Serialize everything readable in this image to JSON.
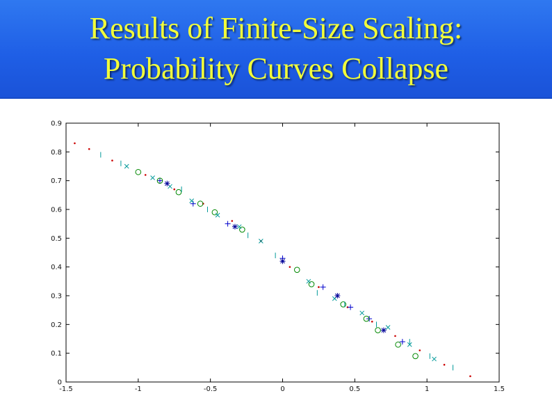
{
  "slide": {
    "title_line1": "Results of Finite-Size Scaling:",
    "title_line2": "Probability Curves Collapse"
  },
  "colors": {
    "title_bg": "#2a6ff0",
    "title_text": "#f2ff3a",
    "series_red": "#cc0000",
    "series_blue": "#0000cc",
    "series_green": "#008800",
    "series_cyan": "#009999",
    "series_magenta": "#bb00bb"
  },
  "chart_data": {
    "type": "scatter",
    "title": "",
    "xlabel": "",
    "ylabel": "",
    "xlim": [
      -1.5,
      1.5
    ],
    "ylim": [
      0,
      0.9
    ],
    "xticks": [
      -1.5,
      -1,
      -0.5,
      0,
      0.5,
      1,
      1.5
    ],
    "xtick_labels": [
      "-1.5",
      "-1",
      "-0.5",
      "0",
      "0.5",
      "1",
      "1.5"
    ],
    "yticks": [
      0,
      0.1,
      0.2,
      0.3,
      0.4,
      0.5,
      0.6,
      0.7,
      0.8,
      0.9
    ],
    "ytick_labels": [
      "0",
      "0.1",
      "0.2",
      "0.3",
      "0.4",
      "0.5",
      "0.6",
      "0.7",
      "0.8",
      "0.9"
    ],
    "grid": false,
    "legend": "none",
    "series": [
      {
        "marker": "dot",
        "color": "#cc0000",
        "x": [
          -1.44,
          -1.34,
          -1.18,
          -0.95,
          -0.75,
          -0.55,
          -0.35,
          -0.15,
          0.05,
          0.25,
          0.45,
          0.62,
          0.78,
          0.95,
          1.12,
          1.3
        ],
        "y": [
          0.83,
          0.81,
          0.77,
          0.72,
          0.67,
          0.62,
          0.56,
          0.49,
          0.4,
          0.33,
          0.26,
          0.21,
          0.16,
          0.11,
          0.06,
          0.02
        ]
      },
      {
        "marker": "plus",
        "color": "#0000cc",
        "x": [
          -0.85,
          -0.62,
          -0.38,
          -0.0,
          0.28,
          0.47,
          0.6,
          0.83
        ],
        "y": [
          0.7,
          0.62,
          0.55,
          0.43,
          0.33,
          0.26,
          0.22,
          0.14
        ]
      },
      {
        "marker": "circle",
        "color": "#008800",
        "x": [
          -1.0,
          -0.85,
          -0.72,
          -0.57,
          -0.47,
          -0.28,
          0.1,
          0.2,
          0.42,
          0.58,
          0.66,
          0.8,
          0.92
        ],
        "y": [
          0.73,
          0.7,
          0.66,
          0.62,
          0.59,
          0.53,
          0.39,
          0.34,
          0.27,
          0.22,
          0.18,
          0.13,
          0.09
        ]
      },
      {
        "marker": "x",
        "color": "#009999",
        "x": [
          -1.08,
          -0.9,
          -0.78,
          -0.63,
          -0.45,
          -0.3,
          -0.15,
          0.18,
          0.36,
          0.55,
          0.73,
          0.88,
          1.05
        ],
        "y": [
          0.75,
          0.71,
          0.68,
          0.63,
          0.58,
          0.54,
          0.49,
          0.35,
          0.29,
          0.24,
          0.19,
          0.13,
          0.08
        ]
      },
      {
        "marker": "vbar",
        "color": "#009999",
        "x": [
          -1.26,
          -1.12,
          -0.7,
          -0.52,
          -0.24,
          -0.05,
          0.24,
          0.43,
          0.65,
          0.88,
          1.02,
          1.18
        ],
        "y": [
          0.79,
          0.76,
          0.67,
          0.6,
          0.51,
          0.44,
          0.31,
          0.27,
          0.2,
          0.14,
          0.09,
          0.05
        ]
      },
      {
        "marker": "star",
        "color": "#000099",
        "x": [
          -0.8,
          -0.33,
          0.0,
          0.38,
          0.7
        ],
        "y": [
          0.69,
          0.54,
          0.42,
          0.3,
          0.18
        ]
      }
    ]
  }
}
